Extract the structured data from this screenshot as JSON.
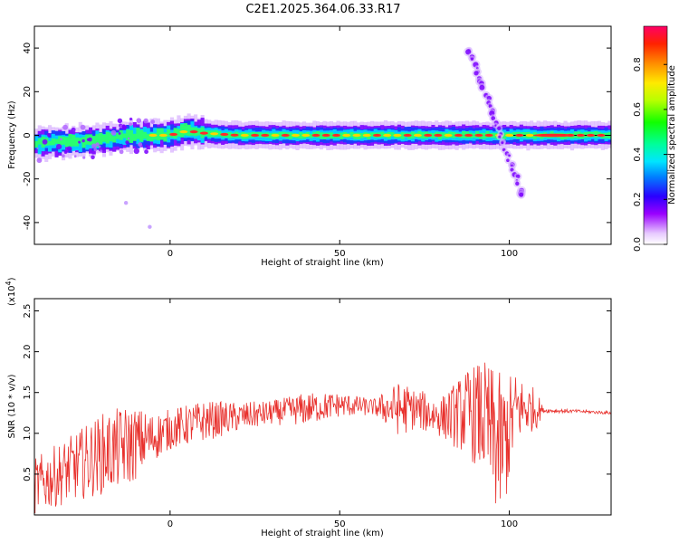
{
  "title": "C2E1.2025.364.06.33.R17",
  "chart_data": [
    {
      "type": "heatmap",
      "xlabel": "Height of straight line (km)",
      "ylabel": "Frequency (Hz)",
      "xlim": [
        -40,
        130
      ],
      "ylim": [
        -50,
        50
      ],
      "xticks": [
        0,
        50,
        100
      ],
      "xtick_labels": [
        "0",
        "50",
        "100"
      ],
      "yticks": [
        -40,
        -20,
        0,
        20,
        40
      ],
      "ytick_labels": [
        "-40",
        "-20",
        "0",
        "20",
        "40"
      ],
      "colorbar": {
        "label": "Normalized spectral amplitude",
        "range": [
          0.0,
          0.97
        ],
        "ticks": [
          0.0,
          0.2,
          0.4,
          0.6,
          0.8
        ],
        "tick_labels": [
          "0.0",
          "0.2",
          "0.4",
          "0.6",
          "0.8"
        ]
      },
      "centerline_freq": [
        [
          -40,
          -4
        ],
        [
          -30,
          -3
        ],
        [
          -20,
          -2
        ],
        [
          -10,
          0
        ],
        [
          0,
          0
        ],
        [
          5,
          2
        ],
        [
          10,
          1
        ],
        [
          20,
          0
        ],
        [
          50,
          0
        ],
        [
          90,
          0
        ],
        [
          96,
          0
        ],
        [
          100,
          0
        ],
        [
          130,
          0
        ]
      ],
      "streaks": [
        {
          "x": [
            88,
            104
          ],
          "y": [
            40,
            -28
          ]
        }
      ]
    },
    {
      "type": "line",
      "xlabel": "Height of straight line (km)",
      "ylabel": "SNR (10 * v/v)",
      "multiplier_label": "(x10",
      "multiplier_exp": "4",
      "multiplier_close": ")",
      "xlim": [
        -40,
        130
      ],
      "ylim": [
        0.0,
        2.65
      ],
      "xticks": [
        0,
        50,
        100
      ],
      "xtick_labels": [
        "0",
        "50",
        "100"
      ],
      "yticks": [
        0.5,
        1.0,
        1.5,
        2.0,
        2.5
      ],
      "ytick_labels": [
        "0.5",
        "1.0",
        "1.5",
        "2.0",
        "2.5"
      ],
      "series": [
        {
          "name": "SNR",
          "color": "#e8302c",
          "envelope": {
            "x": [
              -40,
              -30,
              -20,
              -12,
              -5,
              0,
              5,
              10,
              20,
              30,
              40,
              50,
              60,
              68,
              72,
              80,
              88,
              92,
              96,
              98,
              102,
              106,
              108,
              110,
              120,
              130
            ],
            "mean": [
              0.35,
              0.55,
              0.75,
              0.85,
              0.95,
              1.05,
              1.1,
              1.15,
              1.2,
              1.25,
              1.3,
              1.35,
              1.32,
              1.3,
              1.3,
              1.2,
              1.25,
              1.2,
              0.9,
              0.8,
              1.3,
              1.3,
              1.3,
              1.28,
              1.27,
              1.25
            ],
            "amp": [
              0.35,
              0.4,
              0.5,
              0.5,
              0.3,
              0.25,
              0.25,
              0.25,
              0.18,
              0.15,
              0.2,
              0.15,
              0.1,
              0.35,
              0.25,
              0.25,
              0.55,
              0.7,
              0.9,
              0.9,
              0.45,
              0.3,
              0.25,
              0.03,
              0.02,
              0.02
            ]
          }
        }
      ]
    }
  ]
}
